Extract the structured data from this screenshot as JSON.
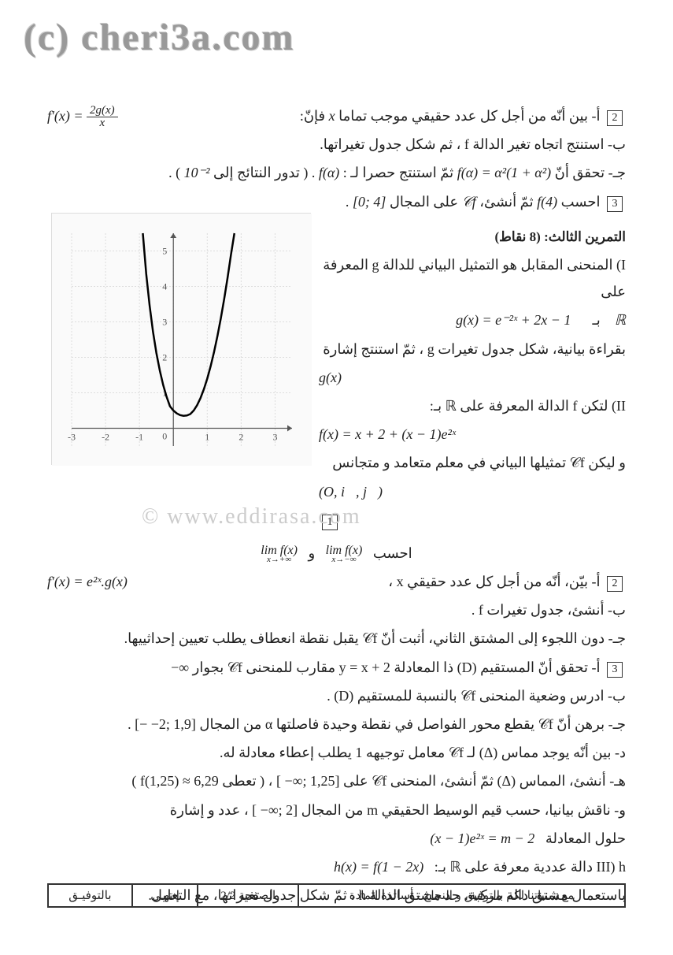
{
  "watermark_top": "(c) cheri3a.com",
  "watermark_mid": "© www.eddirasa.com",
  "q2a_prefix": "أ- بين أنّه من أجل كل عدد حقيقي موجب تماما",
  "q2a_var": "x",
  "q2a_suffix": "فإنّ:",
  "q2a_formula_lhs": "f'(x) =",
  "q2a_frac_num": "2g(x)",
  "q2a_frac_den": "x",
  "q2b": "ب- استنتج اتجاه تغير الدالة f ، ثم شكل جدول تغيراتها.",
  "q2c_prefix": "جـ- تحقق أنّ",
  "q2c_formula1": "f(α) = α²(1 + α²)",
  "q2c_mid": "ثمّ استنتج حصرا لـ :",
  "q2c_formula2": "f(α)",
  "q2c_suffix": ". ( تدور النتائج إلى",
  "q2c_precision": "10⁻²",
  "q2c_end": ") .",
  "q3": "احسب",
  "q3_formula": "f(4)",
  "q3_mid": "ثمّ أنشئ،",
  "q3_cf": "𝒞f",
  "q3_suffix": "على المجال",
  "q3_interval": "[0; 4]",
  "q3_end": ".",
  "ex3_title": "التمرين الثالث: (8 نقاط)",
  "ex3_I": "I) المنحنى المقابل هو التمثيل البياني للدالة g المعرفة على",
  "ex3_I_domain": "ℝ",
  "ex3_I_by": "بـ",
  "ex3_I_formula": "g(x) = e⁻²ˣ + 2x − 1",
  "ex3_I_line2": "بقراءة بيانية، شكل جدول تغيرات g ، ثمّ استنتج إشارة",
  "ex3_I_gx": "g(x)",
  "ex3_II": "II) لتكن f الدالة المعرفة على ℝ بـ:",
  "ex3_II_formula": "f(x) = x + 2 + (x − 1)e²ˣ",
  "ex3_II_line2": "و ليكن 𝒞f تمثيلها البياني في معلم متعامد و متجانس",
  "ex3_II_basis": "(O, i⃗, j⃗)",
  "ex3_q1_label": "1",
  "ex3_q1_text": "احسب",
  "ex3_lim1_top": "lim f(x)",
  "ex3_lim1_bot": "x→−∞",
  "ex3_q1_and": "و",
  "ex3_lim2_top": "lim f(x)",
  "ex3_lim2_bot": "x→+∞",
  "ex3_q2a": "أ- بيّن، أنّه من أجل كل عدد حقيقي x ،",
  "ex3_q2a_formula": "f'(x) = e²ˣ.g(x)",
  "ex3_q2b": "ب- أنشئ، جدول تغيرات f .",
  "ex3_q2c": "جـ- دون اللجوء إلى المشتق الثاني، أثبت أنّ 𝒞f يقبل نقطة انعطاف يطلب تعيين إحداثييها.",
  "ex3_q3a": "أ- تحقق أنّ المستقيم (D) ذا المعادلة y = x + 2 مقارب للمنحنى 𝒞f بجوار ∞−",
  "ex3_q3b": "ب- ادرس وضعية المنحنى 𝒞f بالنسبة للمستقيم (D) .",
  "ex3_q3c": "جـ- برهن أنّ 𝒞f يقطع محور الفواصل في نقطة وحيدة فاصلتها α من المجال [1,9 ;2− −] .",
  "ex3_q3d": "د- بين أنّه يوجد مماس (Δ) لـ 𝒞f معامل توجيهه 1 يطلب إعطاء معادلة له.",
  "ex3_q3e": "هـ- أنشئ، المماس (Δ) ثمّ أنشئ، المنحنى 𝒞f على [1,25 ;∞− ] ، ( تعطى 6,29 ≈ (1,25)f )",
  "ex3_q3f_line1": "و- ناقش بيانيا، حسب قيم الوسيط الحقيقي m من المجال [2 ;∞− ] ، عدد و إشارة",
  "ex3_q3f_line2": "حلول المعادلة",
  "ex3_q3f_formula": "(x − 1)e²ˣ = m − 2",
  "ex3_III": "III) h دالة عددية معرفة على ℝ بـ:",
  "ex3_III_formula": "h(x) = f(1 − 2x)",
  "ex3_III_line2": "باستعمال مشتق دالة مركبة، جد مشتق الدالة h ، ثمّ شكل جدول تغيراتها، مع التعليل.",
  "footer_c1": "مع تمنياتنا لكم بالتوفيق و النجاح - أساتذة المادة",
  "footer_c2": "الصفحة 2/2",
  "footer_c3": "إنتهـى",
  "footer_c4": "بالتوفيـق",
  "graph": {
    "type": "line",
    "xlim": [
      -3,
      3.5
    ],
    "ylim": [
      -0.5,
      5.5
    ],
    "xticks": [
      -3,
      -2,
      -1,
      0,
      1,
      2,
      3
    ],
    "yticks": [
      1,
      2,
      3,
      4,
      5
    ],
    "grid_color": "#dddddd",
    "axis_color": "#555555",
    "curve_color": "#000000",
    "curve_width": 2.5,
    "background": "#fafafa",
    "tick_fontsize": 12,
    "curve_points": [
      [
        -0.9,
        5.5
      ],
      [
        -0.8,
        4.35
      ],
      [
        -0.7,
        3.46
      ],
      [
        -0.6,
        2.72
      ],
      [
        -0.5,
        2.12
      ],
      [
        -0.4,
        1.63
      ],
      [
        -0.3,
        1.22
      ],
      [
        -0.2,
        0.89
      ],
      [
        -0.1,
        0.62
      ],
      [
        0,
        0.5
      ],
      [
        0.1,
        0.42
      ],
      [
        0.2,
        0.37
      ],
      [
        0.3,
        0.35
      ],
      [
        0.4,
        0.36
      ],
      [
        0.5,
        0.4
      ],
      [
        0.6,
        0.5
      ],
      [
        0.7,
        0.65
      ],
      [
        0.8,
        0.85
      ],
      [
        0.9,
        1.1
      ],
      [
        1.0,
        1.4
      ],
      [
        1.1,
        1.75
      ],
      [
        1.2,
        2.15
      ],
      [
        1.3,
        2.6
      ],
      [
        1.4,
        3.1
      ],
      [
        1.5,
        3.65
      ],
      [
        1.6,
        4.25
      ],
      [
        1.7,
        4.9
      ],
      [
        1.8,
        5.5
      ]
    ]
  }
}
